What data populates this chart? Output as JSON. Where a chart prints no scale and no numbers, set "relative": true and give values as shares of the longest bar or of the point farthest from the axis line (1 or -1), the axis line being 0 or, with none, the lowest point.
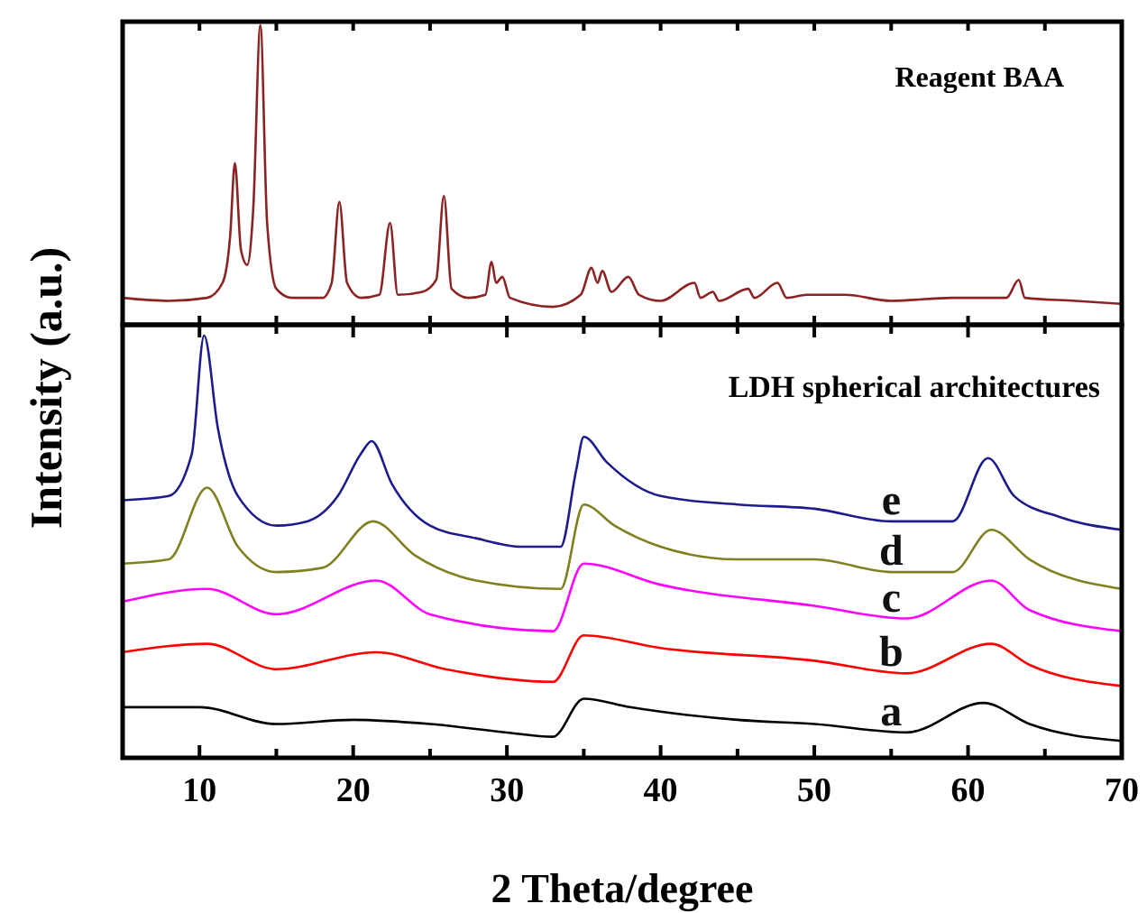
{
  "chart_data": [
    {
      "type": "line",
      "title": "Reagent BAA",
      "relative": true,
      "xlim": [
        5,
        70
      ],
      "xticks": [
        {
          "value": 10,
          "label": null
        },
        {
          "value": 15,
          "label": null
        },
        {
          "value": 20,
          "label": null
        },
        {
          "value": 25,
          "label": null
        },
        {
          "value": 30,
          "label": null
        },
        {
          "value": 35,
          "label": null
        },
        {
          "value": 40,
          "label": null
        },
        {
          "value": 45,
          "label": null
        },
        {
          "value": 50,
          "label": null
        },
        {
          "value": 55,
          "label": null
        },
        {
          "value": 60,
          "label": null
        },
        {
          "value": 65,
          "label": null
        }
      ],
      "tick_labels": false,
      "grid": false,
      "series": [
        {
          "color": "#8b2323",
          "x": [
            5,
            8,
            10.5,
            11.5,
            12.0,
            12.3,
            12.7,
            13.1,
            13.5,
            13.96,
            14.4,
            15,
            16,
            18,
            18.6,
            19.1,
            19.6,
            20.5,
            21.7,
            22.4,
            22.9,
            24.5,
            25.4,
            25.9,
            26.4,
            27.5,
            28.6,
            29.0,
            29.3,
            29.7,
            30.2,
            33,
            34.8,
            35.5,
            35.9,
            36.2,
            36.8,
            37.9,
            38.6,
            40,
            42.2,
            42.6,
            43.4,
            43.8,
            45.7,
            46.1,
            47.6,
            48.2,
            49.5,
            52,
            55,
            59,
            62.5,
            63.3,
            63.7,
            67,
            70
          ],
          "values": [
            0.09,
            0.08,
            0.09,
            0.14,
            0.3,
            0.54,
            0.25,
            0.2,
            0.39,
            1.0,
            0.34,
            0.12,
            0.09,
            0.09,
            0.14,
            0.41,
            0.14,
            0.09,
            0.1,
            0.34,
            0.1,
            0.11,
            0.15,
            0.43,
            0.12,
            0.09,
            0.1,
            0.21,
            0.14,
            0.16,
            0.09,
            0.06,
            0.1,
            0.19,
            0.14,
            0.18,
            0.11,
            0.16,
            0.1,
            0.08,
            0.14,
            0.09,
            0.11,
            0.08,
            0.12,
            0.09,
            0.14,
            0.09,
            0.1,
            0.1,
            0.08,
            0.09,
            0.09,
            0.15,
            0.09,
            0.08,
            0.07
          ]
        }
      ]
    },
    {
      "type": "line",
      "title": "LDH spherical architectures",
      "relative": true,
      "xlabel": "2 Theta/degree",
      "ylabel": "Intensity (a.u.)",
      "xlim": [
        5,
        70
      ],
      "xticks": [
        10,
        {
          "value": 15,
          "label": null
        },
        20,
        {
          "value": 25,
          "label": null
        },
        30,
        {
          "value": 35,
          "label": null
        },
        40,
        {
          "value": 45,
          "label": null
        },
        50,
        {
          "value": 55,
          "label": null
        },
        60,
        {
          "value": 65,
          "label": null
        },
        70
      ],
      "tick_labels": "x",
      "grid": false,
      "series": [
        {
          "name": "a",
          "color": "#000000",
          "x": [
            5,
            10,
            15,
            20,
            25,
            30,
            33,
            35,
            38,
            45,
            50,
            56,
            61,
            64,
            70
          ],
          "values": [
            0.12,
            0.12,
            0.08,
            0.09,
            0.08,
            0.06,
            0.05,
            0.14,
            0.12,
            0.09,
            0.08,
            0.06,
            0.13,
            0.08,
            0.04
          ]
        },
        {
          "name": "b",
          "color": "#ff0000",
          "x": [
            5,
            10.5,
            15,
            21.5,
            26,
            33,
            35,
            40,
            50,
            56,
            61.5,
            64,
            70
          ],
          "values": [
            0.25,
            0.27,
            0.21,
            0.25,
            0.21,
            0.18,
            0.29,
            0.26,
            0.23,
            0.2,
            0.27,
            0.22,
            0.17
          ]
        },
        {
          "name": "c",
          "color": "#ff00ff",
          "x": [
            5,
            10.5,
            15,
            21.5,
            25,
            33,
            35,
            40,
            50,
            56,
            61.5,
            64,
            70
          ],
          "values": [
            0.37,
            0.4,
            0.34,
            0.42,
            0.34,
            0.3,
            0.46,
            0.41,
            0.36,
            0.33,
            0.42,
            0.35,
            0.3
          ]
        },
        {
          "name": "d",
          "color": "#808020",
          "x": [
            5,
            8,
            10.5,
            12.5,
            15,
            18,
            21.3,
            24,
            28,
            33.5,
            35,
            37,
            40,
            45,
            50,
            55,
            59,
            61.5,
            64,
            70
          ],
          "values": [
            0.46,
            0.47,
            0.64,
            0.5,
            0.44,
            0.45,
            0.56,
            0.48,
            0.42,
            0.4,
            0.6,
            0.55,
            0.5,
            0.47,
            0.47,
            0.44,
            0.44,
            0.54,
            0.47,
            0.4
          ]
        },
        {
          "name": "e",
          "color": "#1c1c8c",
          "x": [
            5,
            8,
            9.5,
            10.3,
            11.2,
            12.5,
            15,
            17,
            19,
            20.5,
            21.2,
            22.5,
            25,
            28,
            31,
            33.5,
            34.5,
            35,
            36.5,
            40,
            45,
            50,
            55,
            59,
            61.3,
            63,
            66,
            70
          ],
          "values": [
            0.61,
            0.62,
            0.72,
            1.0,
            0.78,
            0.62,
            0.55,
            0.56,
            0.62,
            0.72,
            0.75,
            0.65,
            0.55,
            0.52,
            0.5,
            0.5,
            0.68,
            0.76,
            0.7,
            0.62,
            0.6,
            0.59,
            0.56,
            0.56,
            0.71,
            0.62,
            0.57,
            0.54
          ]
        }
      ]
    }
  ]
}
